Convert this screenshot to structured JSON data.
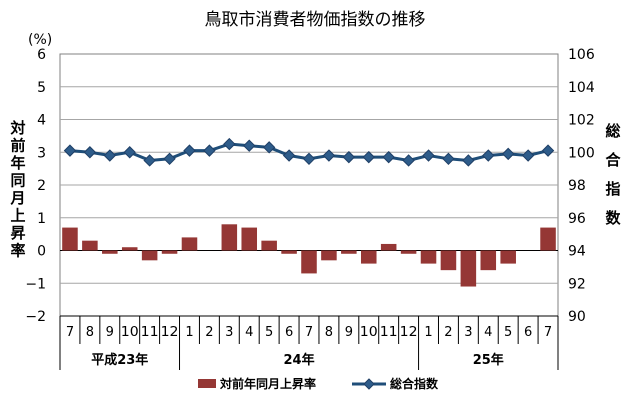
{
  "chart_data": {
    "type": "bar-line-combo",
    "title": "鳥取市消費者物価指数の推移",
    "left_unit": "(%)",
    "left_axis_label": "対前年同月上昇率",
    "right_axis_label": "総合指数",
    "left_ylim": [
      -2,
      6
    ],
    "left_ticks": [
      "6",
      "5",
      "4",
      "3",
      "2",
      "1",
      "0",
      "−1",
      "−2"
    ],
    "right_ylim": [
      90,
      106
    ],
    "right_ticks": [
      "106",
      "104",
      "102",
      "100",
      "98",
      "96",
      "94",
      "92",
      "90"
    ],
    "grid": true,
    "legend_position": "bottom",
    "categories": [
      "7",
      "8",
      "9",
      "10",
      "11",
      "12",
      "1",
      "2",
      "3",
      "4",
      "5",
      "6",
      "7",
      "8",
      "9",
      "10",
      "11",
      "12",
      "1",
      "2",
      "3",
      "4",
      "5",
      "6",
      "7"
    ],
    "year_groups": [
      {
        "label": "平成23年",
        "start": 0,
        "end": 5
      },
      {
        "label": "24年",
        "start": 6,
        "end": 17
      },
      {
        "label": "25年",
        "start": 18,
        "end": 24
      }
    ],
    "series": [
      {
        "name": "対前年同月上昇率",
        "type": "bar",
        "color": "#953735",
        "values": [
          0.7,
          0.3,
          -0.1,
          0.1,
          -0.3,
          -0.1,
          0.4,
          0.0,
          0.8,
          0.7,
          0.3,
          -0.1,
          -0.7,
          -0.3,
          -0.1,
          -0.4,
          0.2,
          -0.1,
          -0.4,
          -0.6,
          -1.1,
          -0.6,
          -0.4,
          0.0,
          0.7
        ]
      },
      {
        "name": "総合指数",
        "type": "line",
        "color": "#1F4E79",
        "values": [
          100.1,
          100.0,
          99.8,
          100.0,
          99.5,
          99.6,
          100.1,
          100.1,
          100.5,
          100.4,
          100.3,
          99.8,
          99.6,
          99.8,
          99.7,
          99.7,
          99.7,
          99.5,
          99.8,
          99.6,
          99.5,
          99.8,
          99.9,
          99.8,
          100.1
        ]
      }
    ]
  }
}
